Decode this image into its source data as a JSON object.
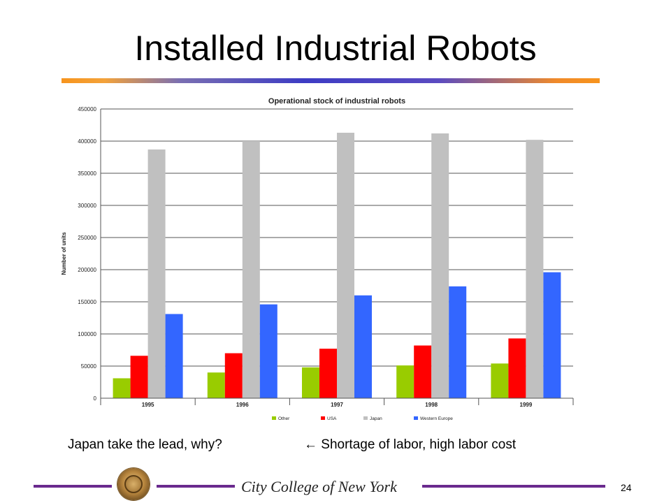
{
  "slide": {
    "title": "Installed Industrial Robots",
    "note_left": "Japan take the lead, why?",
    "note_right_arrow": "←",
    "note_right": "Shortage of labor, high labor cost",
    "footer_college": "City College of New York",
    "page_number": "24"
  },
  "colors": {
    "Other": "#99cc00",
    "USA": "#ff0000",
    "Japan": "#c0c0c0",
    "Western Europe": "#3366ff",
    "title_rule_start": "#f7941d",
    "title_rule_mid": "#3d3cc4",
    "footer_line": "#6a2a8e"
  },
  "chart_data": {
    "type": "bar",
    "title": "Operational stock of industrial robots",
    "xlabel": "",
    "ylabel": "Number of units",
    "ylim": [
      0,
      450000
    ],
    "yticks": [
      0,
      50000,
      100000,
      150000,
      200000,
      250000,
      300000,
      350000,
      400000,
      450000
    ],
    "grid": true,
    "legend_position": "bottom",
    "categories": [
      "1995",
      "1996",
      "1997",
      "1998",
      "1999"
    ],
    "series": [
      {
        "name": "Other",
        "values": [
          31000,
          40000,
          48000,
          51000,
          54000
        ]
      },
      {
        "name": "USA",
        "values": [
          66000,
          70000,
          77000,
          82000,
          93000
        ]
      },
      {
        "name": "Japan",
        "values": [
          387000,
          400000,
          413000,
          412000,
          402000
        ]
      },
      {
        "name": "Western Europe",
        "values": [
          131000,
          146000,
          160000,
          174000,
          196000
        ]
      }
    ]
  }
}
